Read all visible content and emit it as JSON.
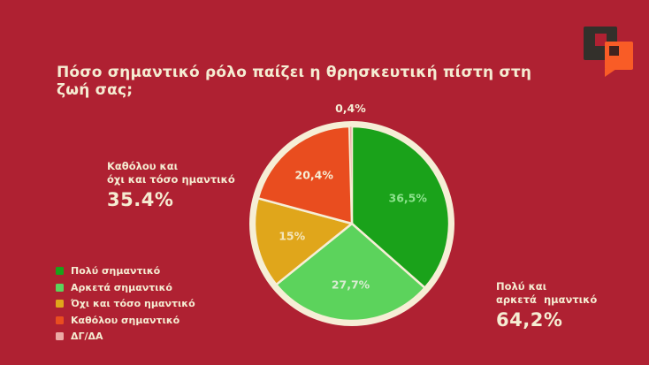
{
  "theme": {
    "background": "#af2132",
    "cream": "#f5ecd2"
  },
  "logo": {
    "dark": "#33302b",
    "orange": "#f95c26",
    "hole_dark": "#42231e"
  },
  "chart_data": {
    "type": "pie",
    "title": "Πόσο σημαντικό ρόλο παίζει η θρησκευτική πίστη στη ζωή σας;",
    "categories": [
      "Πολύ σημαντικό",
      "Αρκετά σημαντικό",
      "Όχι και τόσο ημαντικό",
      "Καθόλου σημαντικό",
      "ΔΓ/ΔΑ"
    ],
    "values": [
      36.5,
      27.7,
      15,
      20.4,
      0.4
    ],
    "value_labels": [
      "36,5%",
      "27,7%",
      "15%",
      "20,4%",
      "0,4%"
    ],
    "colors": [
      "#1aa21a",
      "#5cd35c",
      "#e0a61b",
      "#e94d1f",
      "#ecaaa5"
    ],
    "label_colors": [
      "#8de28d",
      "#d9ecd2",
      "#f4e6bb",
      "#f6eed6",
      "#f6eed6"
    ],
    "outline_color": "#f6eed6",
    "start_angle_deg": 0,
    "direction": "clockwise",
    "legend_position": "bottom-left",
    "annotations": {
      "left": {
        "line1": "Καθόλου και",
        "line2": "όχι και τόσο ημαντικό",
        "value": "35.4%"
      },
      "right": {
        "line1": "Πολύ και",
        "line2": "αρκετά  ημαντικό",
        "value": "64,2%"
      }
    }
  },
  "legend": {
    "items": [
      {
        "label": "Πολύ σημαντικό",
        "color": "#1aa21a"
      },
      {
        "label": "Αρκετά σημαντικό",
        "color": "#5cd35c"
      },
      {
        "label": "Όχι και τόσο ημαντικό",
        "color": "#e0a61b"
      },
      {
        "label": "Καθόλου σημαντικό",
        "color": "#e94d1f"
      },
      {
        "label": "ΔΓ/ΔΑ",
        "color": "#ecaaa5"
      }
    ]
  }
}
